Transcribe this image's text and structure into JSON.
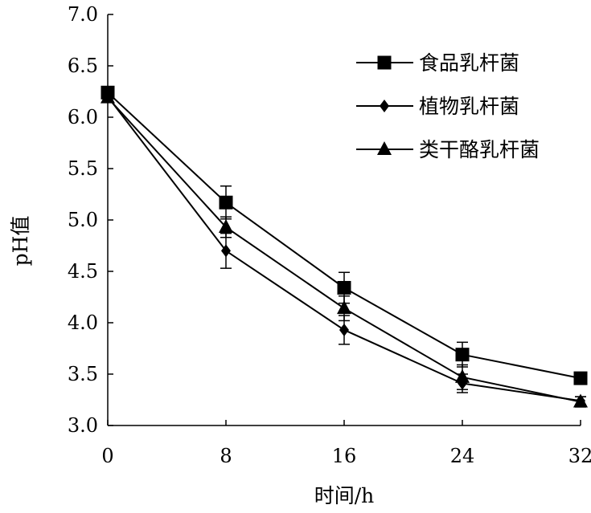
{
  "chart_data": {
    "type": "line",
    "xlabel": "时间/h",
    "ylabel": "pH值",
    "x": [
      0,
      8,
      16,
      24,
      32
    ],
    "x_ticks": [
      "0",
      "8",
      "16",
      "24",
      "32"
    ],
    "y_ticks": [
      "3.0",
      "3.5",
      "4.0",
      "4.5",
      "5.0",
      "5.5",
      "6.0",
      "6.5",
      "7.0"
    ],
    "xlim": [
      0,
      32
    ],
    "ylim": [
      3.0,
      7.0
    ],
    "grid": false,
    "legend_position": "top-right",
    "series": [
      {
        "name": "食品乳杆菌",
        "marker": "square",
        "values": [
          6.24,
          5.17,
          4.34,
          3.69,
          3.46
        ],
        "errors": [
          0.04,
          0.16,
          0.15,
          0.12,
          0.05
        ]
      },
      {
        "name": "植物乳杆菌",
        "marker": "diamond",
        "values": [
          6.2,
          4.7,
          3.93,
          3.41,
          3.24
        ],
        "errors": [
          0.04,
          0.17,
          0.14,
          0.09,
          0.04
        ]
      },
      {
        "name": "类干酪乳杆菌",
        "marker": "triangle",
        "values": [
          6.19,
          4.93,
          4.14,
          3.47,
          3.23
        ],
        "errors": [
          0.04,
          0.1,
          0.12,
          0.12,
          0.05
        ]
      }
    ]
  }
}
